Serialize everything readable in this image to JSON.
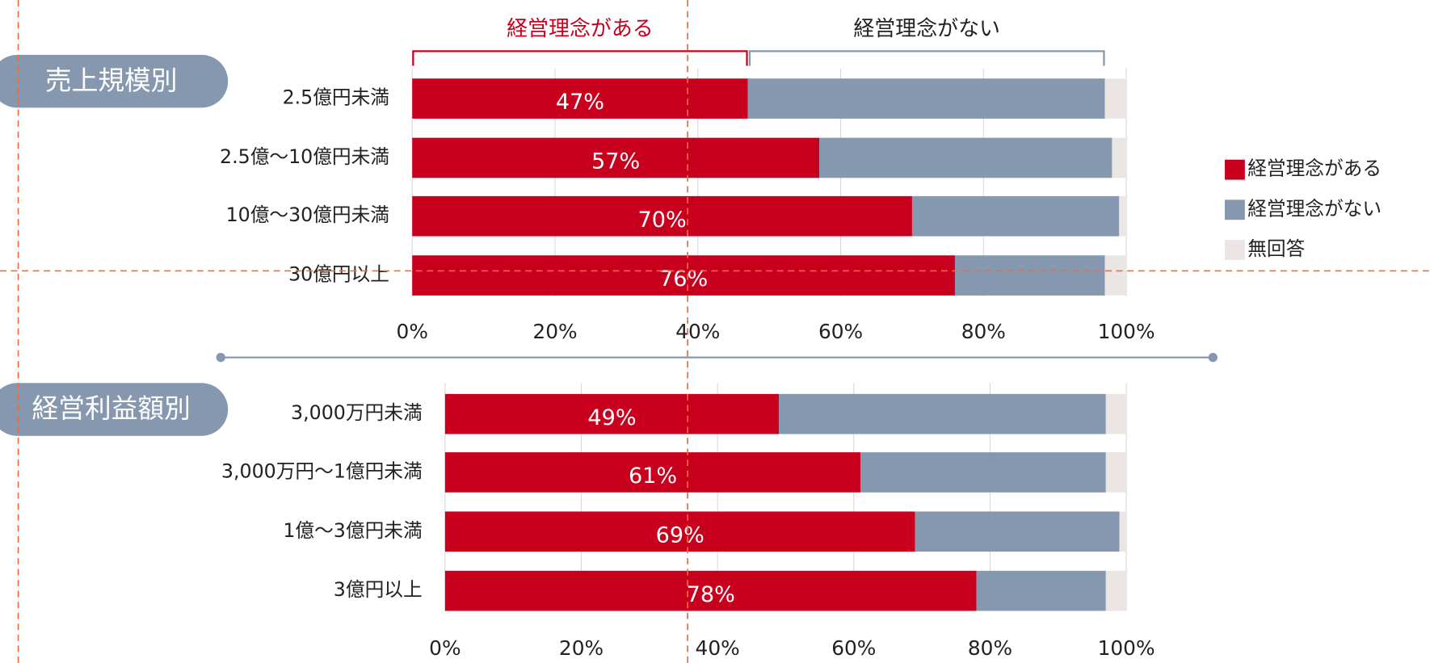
{
  "chart_data": [
    {
      "type": "stacked-bar-horizontal",
      "title": "売上規模別",
      "categories": [
        "2.5億円未満",
        "2.5億～10億円未満",
        "10億～30億円未満",
        "30億円以上"
      ],
      "series": [
        {
          "name": "経営理念がある",
          "color": "#c8001e",
          "values": [
            47,
            57,
            70,
            76
          ],
          "value_labels": [
            "47%",
            "57%",
            "70%",
            "76%"
          ]
        },
        {
          "name": "経営理念がない",
          "color": "#8598b0",
          "values": [
            50,
            41,
            29,
            21
          ]
        },
        {
          "name": "無回答",
          "color": "#ebe6e3",
          "values": [
            3,
            2,
            1,
            3
          ]
        }
      ],
      "xlim": [
        0,
        100
      ],
      "xticks": [
        {
          "value": 0,
          "label": "0%"
        },
        {
          "value": 20,
          "label": "20%"
        },
        {
          "value": 40,
          "label": "40%"
        },
        {
          "value": 60,
          "label": "60%"
        },
        {
          "value": 80,
          "label": "80%"
        },
        {
          "value": 100,
          "label": "100%"
        }
      ],
      "grid": true
    },
    {
      "type": "stacked-bar-horizontal",
      "title": "経営利益額別",
      "categories": [
        "3,000万円未満",
        "3,000万円～1億円未満",
        "1億～3億円未満",
        "3億円以上"
      ],
      "series": [
        {
          "name": "経営理念がある",
          "color": "#c8001e",
          "values": [
            49,
            61,
            69,
            78
          ],
          "value_labels": [
            "49%",
            "61%",
            "69%",
            "78%"
          ]
        },
        {
          "name": "経営理念がない",
          "color": "#8598b0",
          "values": [
            48,
            36,
            30,
            19
          ]
        },
        {
          "name": "無回答",
          "color": "#ebe6e3",
          "values": [
            3,
            3,
            1,
            3
          ]
        }
      ],
      "xlim": [
        0,
        100
      ],
      "xticks": [
        {
          "value": 0,
          "label": "0%"
        },
        {
          "value": 20,
          "label": "20%"
        },
        {
          "value": 40,
          "label": "40%"
        },
        {
          "value": 60,
          "label": "60%"
        },
        {
          "value": 80,
          "label": "80%"
        },
        {
          "value": 100,
          "label": "100%"
        }
      ],
      "grid": true
    }
  ]
}
